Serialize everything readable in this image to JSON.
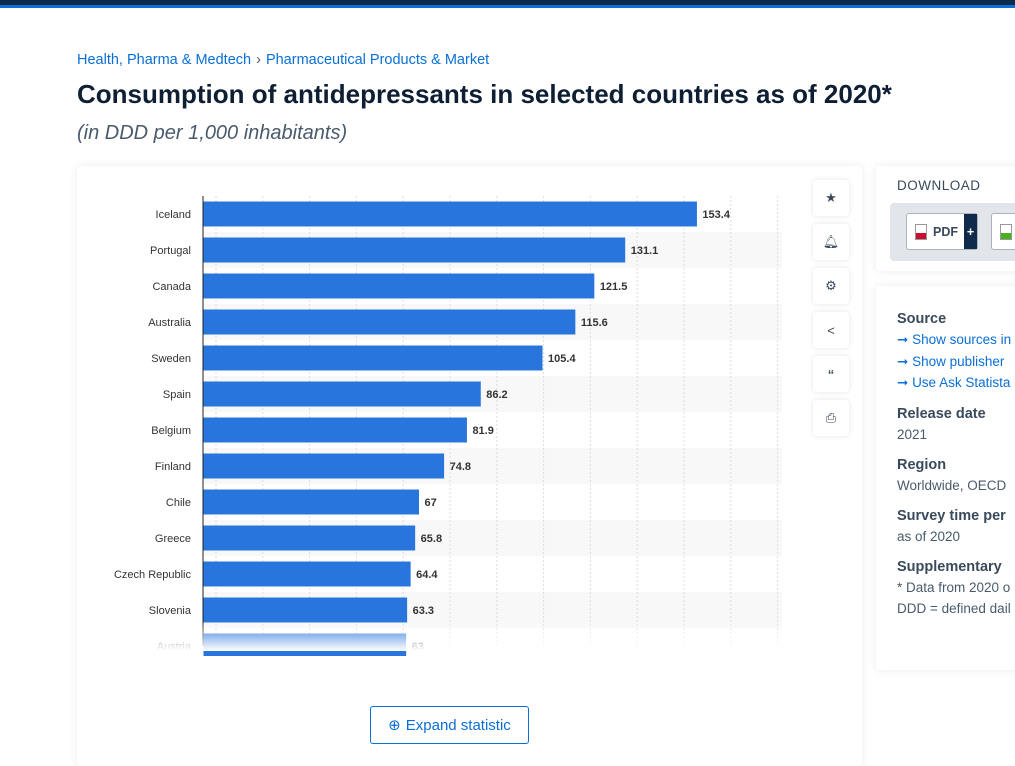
{
  "breadcrumb": {
    "items": [
      "Health, Pharma & Medtech",
      "Pharmaceutical Products & Market"
    ],
    "separator": "›"
  },
  "title": "Consumption of antidepressants in selected countries as of 2020*",
  "subtitle": "(in DDD per 1,000 inhabitants)",
  "expand_label": "Expand statistic",
  "tools": [
    "star-icon",
    "bell-icon",
    "gear-icon",
    "share-icon",
    "quote-icon",
    "print-icon"
  ],
  "download": {
    "title": "DOWNLOAD",
    "pdf": "PDF",
    "plus": "+"
  },
  "meta": {
    "source_title": "Source",
    "links": [
      "Show sources in",
      "Show publisher",
      "Use Ask Statista"
    ],
    "release_title": "Release date",
    "release": "2021",
    "region_title": "Region",
    "region": "Worldwide, OECD",
    "survey_title": "Survey time per",
    "survey": "as of 2020",
    "supp_title": "Supplementary",
    "supp": [
      "* Data from 2020 o",
      "DDD = defined dail"
    ]
  },
  "colors": {
    "bar": "#2876dd",
    "accent": "#0a6fd6"
  },
  "chart_data": {
    "type": "bar",
    "orientation": "horizontal",
    "categories": [
      "Iceland",
      "Portugal",
      "Canada",
      "Australia",
      "Sweden",
      "Spain",
      "Belgium",
      "Finland",
      "Chile",
      "Greece",
      "Czech Republic",
      "Slovenia",
      "Austria"
    ],
    "values": [
      153.4,
      131.1,
      121.5,
      115.6,
      105.4,
      86.2,
      81.9,
      74.8,
      67,
      65.8,
      64.4,
      63.3,
      63
    ],
    "xlim": [
      0,
      180
    ],
    "grid": true
  }
}
